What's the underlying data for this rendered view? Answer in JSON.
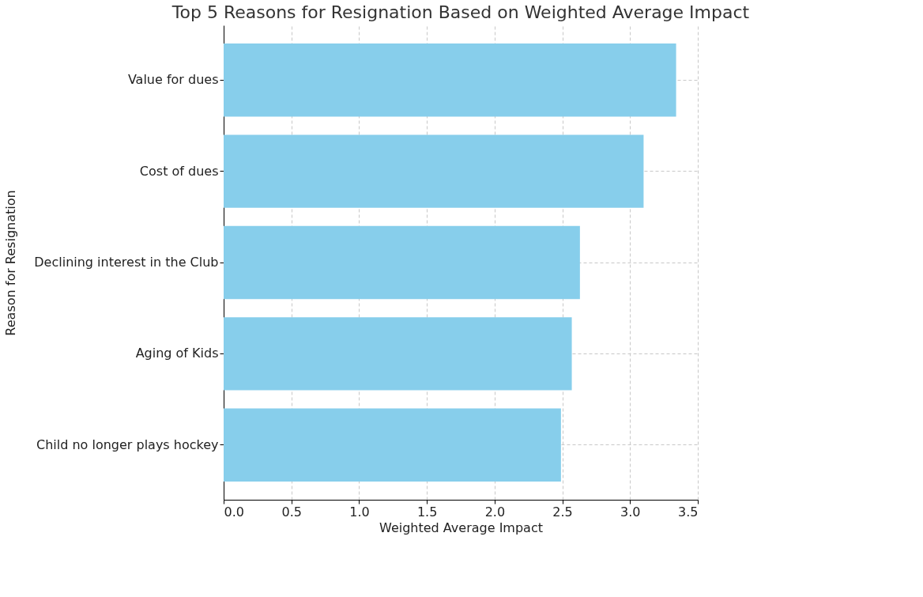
{
  "chart_data": {
    "type": "bar",
    "orientation": "horizontal",
    "title": "Top 5 Reasons for Resignation Based on Weighted Average Impact",
    "xlabel": "Weighted Average Impact",
    "ylabel": "Reason for Resignation",
    "categories": [
      "Value for dues",
      "Cost of dues",
      "Declining interest in the Club",
      "Aging of Kids",
      "Child no longer plays hockey"
    ],
    "values": [
      3.34,
      3.1,
      2.63,
      2.57,
      2.49
    ],
    "color": "#87ceeb",
    "xlim": [
      0,
      3.5
    ],
    "xticks": [
      {
        "value": 0,
        "label": "0.0"
      },
      0.5,
      {
        "value": 1,
        "label": "1.0"
      },
      1.5,
      {
        "value": 2,
        "label": "2.0"
      },
      2.5,
      {
        "value": 3,
        "label": "3.0"
      },
      3.5
    ],
    "grid": true
  }
}
